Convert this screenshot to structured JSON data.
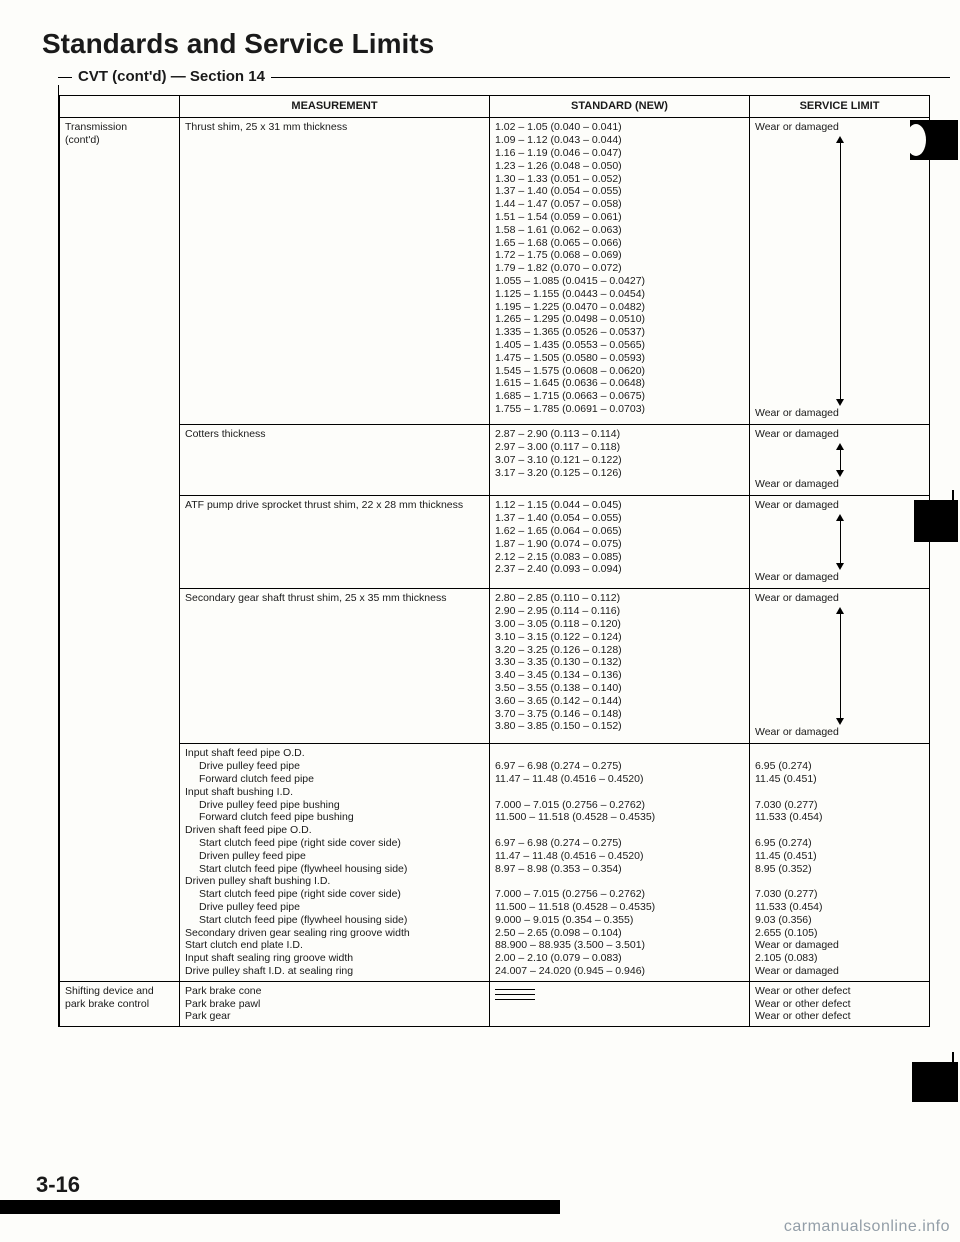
{
  "title": "Standards and Service Limits",
  "section_label": "CVT (cont'd) — Section 14",
  "page_number": "3-16",
  "watermark": "carmanualsonline.info",
  "headers": {
    "c1": "",
    "c2": "MEASUREMENT",
    "c3": "STANDARD (NEW)",
    "c4": "SERVICE LIMIT"
  },
  "group_label": "Transmission\n(cont'd)",
  "rows": [
    {
      "meas": "Thrust shim, 25 x 31 mm thickness",
      "std": "1.02 – 1.05 (0.040 – 0.041)\n1.09 – 1.12 (0.043 – 0.044)\n1.16 – 1.19 (0.046 – 0.047)\n1.23 – 1.26 (0.048 – 0.050)\n1.30 – 1.33 (0.051 – 0.052)\n1.37 – 1.40 (0.054 – 0.055)\n1.44 – 1.47 (0.057 – 0.058)\n1.51 – 1.54 (0.059 – 0.061)\n1.58 – 1.61 (0.062 – 0.063)\n1.65 – 1.68 (0.065 – 0.066)\n1.72 – 1.75 (0.068 – 0.069)\n1.79 – 1.82 (0.070 – 0.072)\n1.055 – 1.085 (0.0415 – 0.0427)\n1.125 – 1.155 (0.0443 – 0.0454)\n1.195 – 1.225 (0.0470 – 0.0482)\n1.265 – 1.295 (0.0498 – 0.0510)\n1.335 – 1.365 (0.0526 – 0.0537)\n1.405 – 1.435 (0.0553 – 0.0565)\n1.475 – 1.505 (0.0580 – 0.0593)\n1.545 – 1.575 (0.0608 – 0.0620)\n1.615 – 1.645 (0.0636 – 0.0648)\n1.685 – 1.715 (0.0663 – 0.0675)\n1.755 – 1.785 (0.0691 – 0.0703)",
      "svc_top": "Wear or damaged",
      "svc_bot": "Wear or damaged",
      "arrow_h": 270
    },
    {
      "meas": "Cotters thickness",
      "std": "2.87 – 2.90 (0.113 – 0.114)\n2.97 – 3.00 (0.117 – 0.118)\n3.07 – 3.10 (0.121 – 0.122)\n3.17 – 3.20 (0.125 – 0.126)",
      "svc_top": "Wear or damaged",
      "svc_bot": "Wear or damaged",
      "arrow_h": 34
    },
    {
      "meas": "ATF pump drive sprocket thrust shim, 22 x 28 mm thickness",
      "std": "1.12 – 1.15 (0.044 – 0.045)\n1.37 – 1.40 (0.054 – 0.055)\n1.62 – 1.65 (0.064 – 0.065)\n1.87 – 1.90 (0.074 – 0.075)\n2.12 – 2.15 (0.083 – 0.085)\n2.37 – 2.40 (0.093 – 0.094)",
      "svc_top": "Wear or damaged",
      "svc_bot": "Wear or damaged",
      "arrow_h": 56
    },
    {
      "meas": "Secondary gear shaft thrust shim, 25 x 35 mm thickness",
      "std": "2.80 – 2.85 (0.110 – 0.112)\n2.90 – 2.95 (0.114 – 0.116)\n3.00 – 3.05 (0.118 – 0.120)\n3.10 – 3.15 (0.122 – 0.124)\n3.20 – 3.25 (0.126 – 0.128)\n3.30 – 3.35 (0.130 – 0.132)\n3.40 – 3.45 (0.134 – 0.136)\n3.50 – 3.55 (0.138 – 0.140)\n3.60 – 3.65 (0.142 – 0.144)\n3.70 – 3.75 (0.146 – 0.148)\n3.80 – 3.85 (0.150 – 0.152)",
      "svc_top": "Wear or damaged",
      "svc_bot": "Wear or damaged",
      "arrow_h": 118
    }
  ],
  "big_row": {
    "meas_lines": [
      {
        "t": "Input shaft feed pipe O.D.",
        "i": 0
      },
      {
        "t": "Drive pulley feed pipe",
        "i": 1
      },
      {
        "t": "Forward clutch feed pipe",
        "i": 1
      },
      {
        "t": "Input shaft bushing I.D.",
        "i": 0
      },
      {
        "t": "Drive pulley feed pipe bushing",
        "i": 1
      },
      {
        "t": "Forward clutch feed pipe bushing",
        "i": 1
      },
      {
        "t": "Driven shaft feed pipe O.D.",
        "i": 0
      },
      {
        "t": "Start clutch feed pipe (right side cover side)",
        "i": 1
      },
      {
        "t": "Driven pulley feed pipe",
        "i": 1
      },
      {
        "t": "Start clutch feed pipe (flywheel housing side)",
        "i": 1
      },
      {
        "t": "Driven pulley shaft bushing I.D.",
        "i": 0
      },
      {
        "t": "Start clutch feed pipe (right side cover side)",
        "i": 1
      },
      {
        "t": "Drive pulley feed pipe",
        "i": 1
      },
      {
        "t": "Start clutch feed pipe (flywheel housing side)",
        "i": 1
      },
      {
        "t": "Secondary driven gear sealing ring groove width",
        "i": 0
      },
      {
        "t": "Start clutch end plate I.D.",
        "i": 0
      },
      {
        "t": "Input shaft sealing ring groove width",
        "i": 0
      },
      {
        "t": "Drive pulley shaft I.D. at sealing ring",
        "i": 0
      }
    ],
    "std_lines": [
      "",
      "6.97 – 6.98 (0.274 – 0.275)",
      "11.47 – 11.48 (0.4516 – 0.4520)",
      "",
      "7.000 – 7.015 (0.2756 – 0.2762)",
      "11.500 – 11.518 (0.4528 – 0.4535)",
      "",
      "6.97 – 6.98 (0.274 – 0.275)",
      "11.47 – 11.48 (0.4516 – 0.4520)",
      "8.97 – 8.98 (0.353 – 0.354)",
      "",
      "7.000 – 7.015 (0.2756 – 0.2762)",
      "11.500 – 11.518 (0.4528 – 0.4535)",
      "9.000 – 9.015 (0.354 – 0.355)",
      "2.50 – 2.65 (0.098 – 0.104)",
      "88.900 – 88.935 (3.500 – 3.501)",
      "2.00 – 2.10 (0.079 – 0.083)",
      "24.007 – 24.020 (0.945 – 0.946)"
    ],
    "svc_lines": [
      "",
      "6.95 (0.274)",
      "11.45 (0.451)",
      "",
      "7.030 (0.277)",
      "11.533 (0.454)",
      "",
      "6.95 (0.274)",
      "11.45 (0.451)",
      "8.95 (0.352)",
      "",
      "7.030 (0.277)",
      "11.533 (0.454)",
      "9.03 (0.356)",
      "2.655 (0.105)",
      "Wear or damaged",
      "2.105 (0.083)",
      "Wear or damaged"
    ]
  },
  "bottom_row": {
    "label": "Shifting device and park brake control",
    "meas": "Park brake cone\nPark brake pawl\nPark gear",
    "svc": "Wear or other defect\nWear or other defect\nWear or other defect"
  }
}
